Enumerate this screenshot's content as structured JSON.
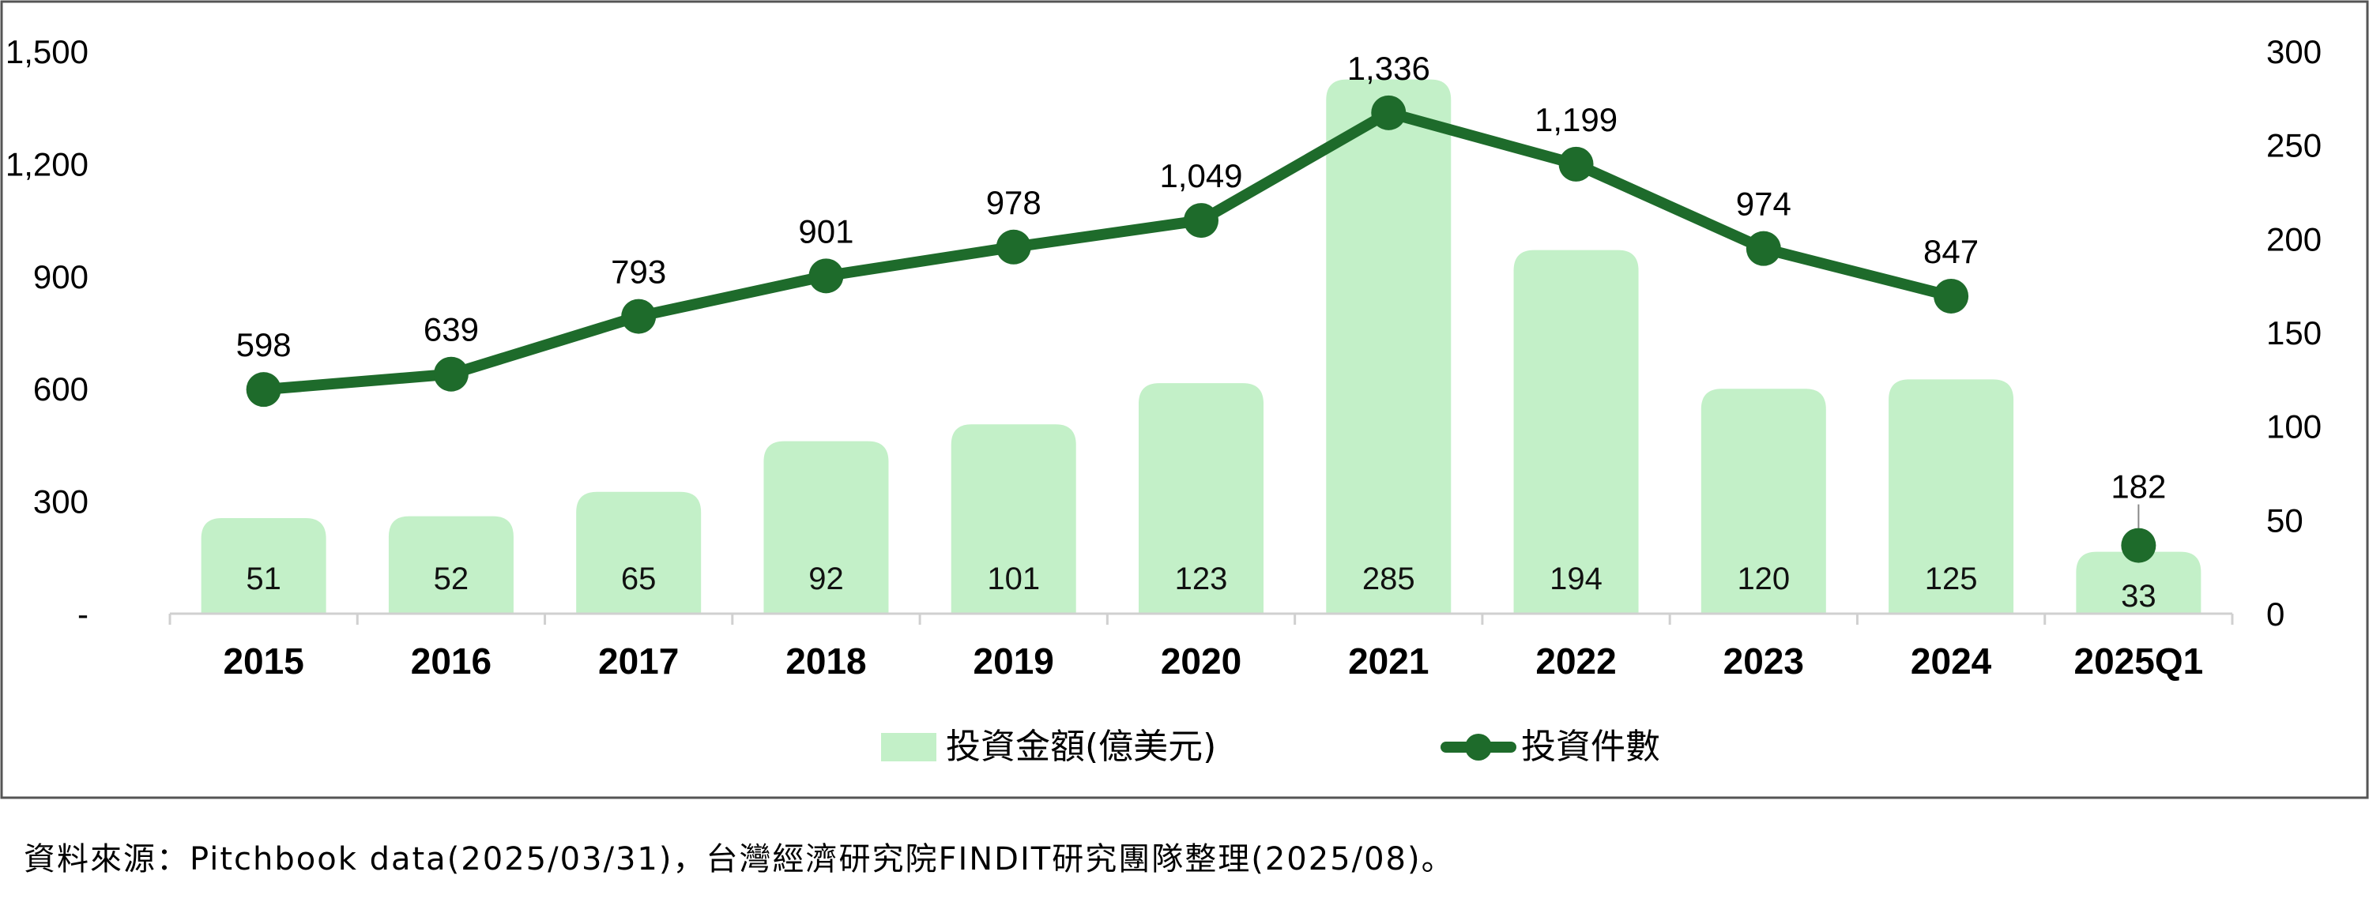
{
  "chart_data": {
    "type": "bar+line",
    "categories": [
      "2015",
      "2016",
      "2017",
      "2018",
      "2019",
      "2020",
      "2021",
      "2022",
      "2023",
      "2024",
      "2025Q1"
    ],
    "series": [
      {
        "name": "投資金額(億美元)",
        "type": "bar",
        "axis": "right",
        "values": [
          51,
          52,
          65,
          92,
          101,
          123,
          285,
          194,
          120,
          125,
          33
        ],
        "color": "#c3f0c8"
      },
      {
        "name": "投資件數",
        "type": "line",
        "axis": "left",
        "values": [
          598,
          639,
          793,
          901,
          978,
          1049,
          1336,
          1199,
          974,
          847,
          182
        ],
        "labels": [
          "598",
          "639",
          "793",
          "901",
          "978",
          "1,049",
          "1,336",
          "1,199",
          "974",
          "847",
          "182"
        ],
        "connected_through_index": 9,
        "color": "#1e6b2b"
      }
    ],
    "y_left": {
      "ticks": [
        "-",
        "300",
        "600",
        "900",
        "1,200",
        "1,500"
      ],
      "values": [
        0,
        300,
        600,
        900,
        1200,
        1500
      ],
      "range": [
        0,
        1500
      ]
    },
    "y_right": {
      "ticks": [
        "0",
        "50",
        "100",
        "150",
        "200",
        "250",
        "300"
      ],
      "values": [
        0,
        50,
        100,
        150,
        200,
        250,
        300
      ],
      "range": [
        0,
        300
      ]
    },
    "legend_placement": "bottom-center",
    "grid": false
  },
  "source_note": "資料來源：Pitchbook data(2025/03/31)，台灣經濟研究院FINDIT研究團隊整理(2025/08)。"
}
